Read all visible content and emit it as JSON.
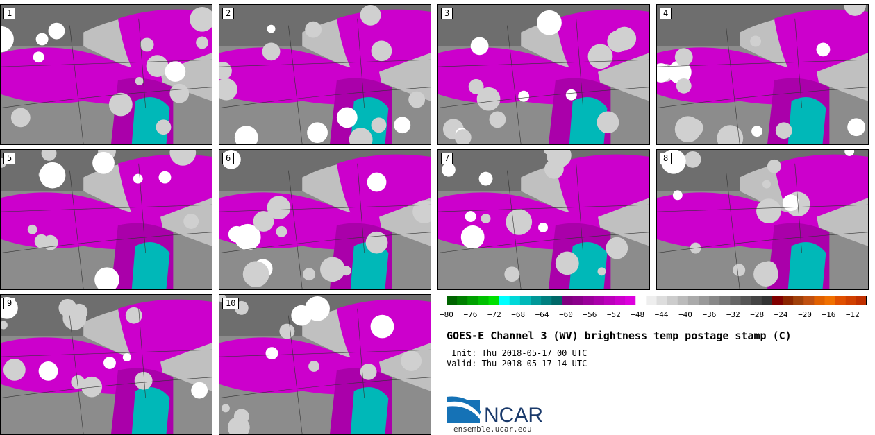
{
  "panels": [
    {
      "label": "1"
    },
    {
      "label": "2"
    },
    {
      "label": "3"
    },
    {
      "label": "4"
    },
    {
      "label": "5"
    },
    {
      "label": "6"
    },
    {
      "label": "7"
    },
    {
      "label": "8"
    },
    {
      "label": "9"
    },
    {
      "label": "10"
    }
  ],
  "colorbar": {
    "ticks": [
      "−80",
      "−76",
      "−72",
      "−68",
      "−64",
      "−60",
      "−56",
      "−52",
      "−48",
      "−44",
      "−40",
      "−36",
      "−32",
      "−28",
      "−24",
      "−20",
      "−16",
      "−12"
    ],
    "colors": [
      "#006400",
      "#008000",
      "#00a000",
      "#00c000",
      "#00e000",
      "#00ffff",
      "#00d8d8",
      "#00b8b8",
      "#009898",
      "#008080",
      "#006868",
      "#800080",
      "#8a008a",
      "#9a009a",
      "#aa00aa",
      "#bb00bb",
      "#cc00cc",
      "#dd00dd",
      "#ffffff",
      "#eeeeee",
      "#dddddd",
      "#cccccc",
      "#bbbbbb",
      "#aaaaaa",
      "#999999",
      "#888888",
      "#777777",
      "#666666",
      "#555555",
      "#444444",
      "#333333",
      "#800000",
      "#8b2500",
      "#a0400a",
      "#c05010",
      "#e06000",
      "#f07000",
      "#e05000",
      "#d04000",
      "#c03000"
    ]
  },
  "title": "GOES-E Channel 3 (WV) brightness temp postage stamp (C)",
  "init_text": " Init: Thu 2018-05-17 00 UTC",
  "valid_text": "Valid: Thu 2018-05-17 14 UTC",
  "logo": {
    "text": "NCAR",
    "url": "ensemble.ucar.edu"
  }
}
